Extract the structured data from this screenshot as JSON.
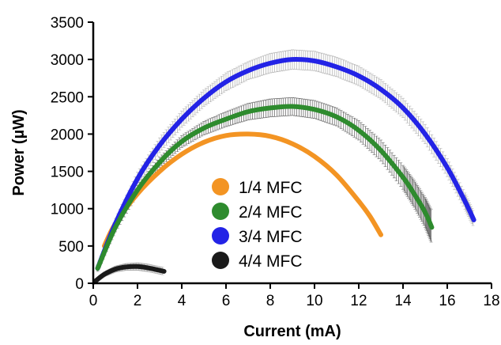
{
  "chart_data": {
    "type": "line",
    "xlabel": "Current (mA)",
    "ylabel": "Power (µW)",
    "xlim": [
      0,
      18
    ],
    "ylim": [
      0,
      3500
    ],
    "xticks": [
      "0",
      "2",
      "4",
      "6",
      "8",
      "10",
      "12",
      "14",
      "16",
      "18"
    ],
    "yticks": [
      "0",
      "500",
      "1000",
      "1500",
      "2000",
      "2500",
      "3000",
      "3500"
    ],
    "legend_position": "center",
    "series": [
      {
        "name": "1/4 MFC",
        "color": "#F39423",
        "error_bars": false,
        "x": [
          0.5,
          1,
          2,
          3,
          4,
          5,
          6,
          7,
          8,
          9,
          10,
          11,
          12,
          12.5,
          13.0
        ],
        "y": [
          500,
          800,
          1200,
          1500,
          1730,
          1890,
          1980,
          2000,
          1970,
          1870,
          1700,
          1450,
          1100,
          900,
          650
        ]
      },
      {
        "name": "2/4 MFC",
        "color": "#2E8B2E",
        "error_bars": true,
        "x": [
          0.2,
          1,
          2,
          3,
          4,
          5,
          6,
          7,
          8,
          9,
          10,
          11,
          12,
          13,
          14,
          14.5,
          15.0,
          15.3
        ],
        "y": [
          200,
          750,
          1250,
          1620,
          1900,
          2080,
          2200,
          2300,
          2350,
          2370,
          2330,
          2230,
          2050,
          1780,
          1420,
          1200,
          950,
          750
        ],
        "error": [
          40,
          60,
          60,
          70,
          80,
          90,
          100,
          110,
          120,
          120,
          120,
          120,
          130,
          140,
          160,
          180,
          200,
          220
        ]
      },
      {
        "name": "3/4 MFC",
        "color": "#2323E6",
        "error_bars": true,
        "x": [
          0.2,
          1,
          2,
          3,
          4,
          5,
          6,
          7,
          8,
          9,
          10,
          11,
          12,
          13,
          14,
          15,
          16,
          16.8,
          17.2
        ],
        "y": [
          200,
          800,
          1400,
          1850,
          2200,
          2480,
          2700,
          2850,
          2950,
          3000,
          2980,
          2900,
          2780,
          2600,
          2350,
          2000,
          1550,
          1100,
          850
        ],
        "error": [
          40,
          70,
          90,
          100,
          110,
          110,
          120,
          120,
          130,
          130,
          130,
          130,
          130,
          130,
          130,
          130,
          120,
          110,
          100
        ]
      },
      {
        "name": "4/4 MFC",
        "color": "#1A1A1A",
        "error_bars": true,
        "x": [
          0.1,
          0.5,
          1,
          1.5,
          2,
          2.5,
          3.2
        ],
        "y": [
          30,
          120,
          190,
          220,
          225,
          205,
          160
        ],
        "error": [
          20,
          30,
          40,
          45,
          50,
          50,
          50
        ]
      }
    ]
  }
}
